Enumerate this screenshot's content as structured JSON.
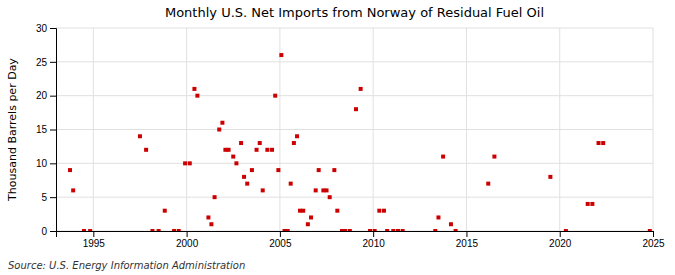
{
  "chart_data": {
    "type": "scatter",
    "title": "Monthly U.S. Net Imports from Norway of Residual Fuel Oil",
    "ylabel": "Thousand Barrels per Day",
    "annotations": [
      "Source: U.S. Energy Information Administration"
    ],
    "color": "#cc0000",
    "marker": "square",
    "grid": true,
    "xlim": [
      1993,
      2025
    ],
    "ylim": [
      0,
      30
    ],
    "xticks": [
      1995,
      2000,
      2005,
      2010,
      2015,
      2020,
      2025
    ],
    "yticks": [
      0,
      5,
      10,
      15,
      20,
      25,
      30
    ],
    "x": [
      1993.75,
      1993.92,
      1994.5,
      1994.83,
      1997.5,
      1997.83,
      1998.17,
      1998.5,
      1998.83,
      1999.33,
      1999.58,
      1999.92,
      2000.17,
      2000.42,
      2000.58,
      2001.17,
      2001.33,
      2001.5,
      2001.75,
      2001.92,
      2002.08,
      2002.25,
      2002.5,
      2002.67,
      2002.92,
      2003.08,
      2003.25,
      2003.5,
      2003.75,
      2003.92,
      2004.08,
      2004.33,
      2004.58,
      2004.75,
      2004.92,
      2005.08,
      2005.25,
      2005.42,
      2005.58,
      2005.75,
      2005.92,
      2006.08,
      2006.25,
      2006.5,
      2006.67,
      2006.92,
      2007.08,
      2007.33,
      2007.5,
      2007.67,
      2007.92,
      2008.08,
      2008.33,
      2008.5,
      2008.75,
      2009.08,
      2009.33,
      2009.83,
      2010.08,
      2010.33,
      2010.58,
      2010.75,
      2011.08,
      2011.33,
      2011.58,
      2013.33,
      2013.5,
      2013.75,
      2014.17,
      2014.42,
      2016.17,
      2016.5,
      2019.5,
      2020.33,
      2021.5,
      2021.75,
      2022.08,
      2022.33,
      2024.83
    ],
    "values": [
      9,
      6,
      0,
      0,
      14,
      12,
      0,
      0,
      3,
      0,
      0,
      10,
      10,
      21,
      20,
      2,
      1,
      5,
      15,
      16,
      12,
      12,
      11,
      10,
      13,
      8,
      7,
      9,
      12,
      13,
      6,
      12,
      12,
      20,
      9,
      26,
      0,
      0,
      7,
      13,
      14,
      3,
      3,
      1,
      2,
      6,
      9,
      6,
      6,
      5,
      9,
      3,
      0,
      0,
      0,
      18,
      21,
      0,
      0,
      3,
      3,
      0,
      0,
      0,
      0,
      0,
      2,
      11,
      1,
      0,
      7,
      11,
      8,
      0,
      4,
      4,
      13,
      13,
      0
    ]
  }
}
